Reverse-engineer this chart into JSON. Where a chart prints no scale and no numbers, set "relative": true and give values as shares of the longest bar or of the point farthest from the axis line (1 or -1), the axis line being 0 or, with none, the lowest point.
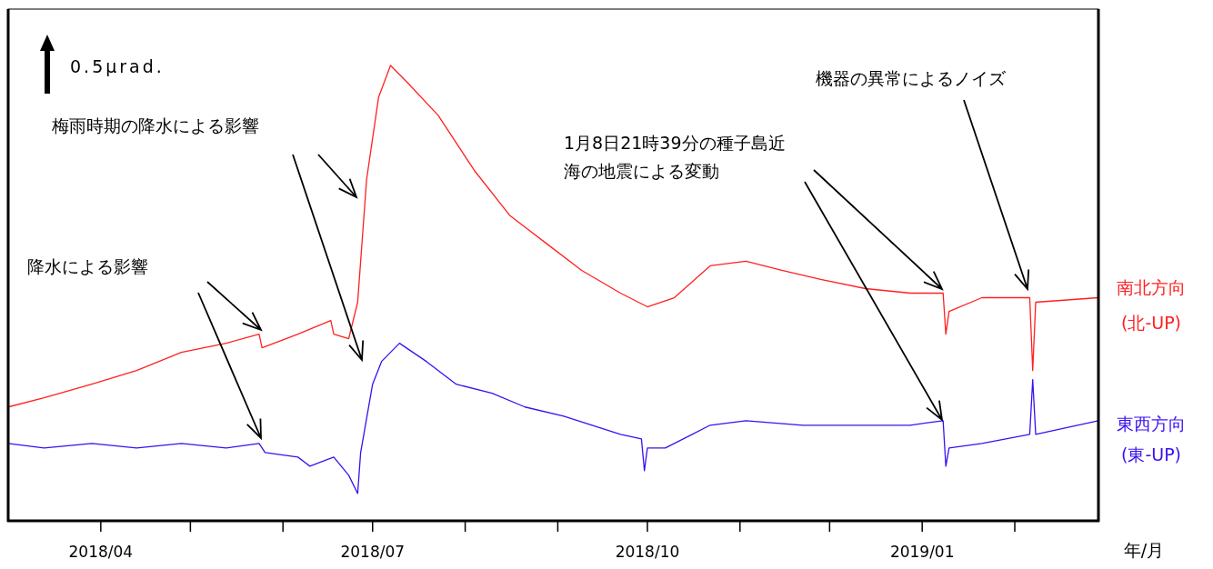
{
  "chart_data": {
    "type": "line",
    "relative": true,
    "xlabel": "年/月",
    "xlim": [
      "2018-03-01",
      "2019-03-01"
    ],
    "xticks": [
      {
        "value": "2018-04-01",
        "label": "2018/04"
      },
      {
        "value": "2018-05-01",
        "label": null
      },
      {
        "value": "2018-06-01",
        "label": null
      },
      {
        "value": "2018-07-01",
        "label": "2018/07"
      },
      {
        "value": "2018-08-01",
        "label": null
      },
      {
        "value": "2018-09-01",
        "label": null
      },
      {
        "value": "2018-10-01",
        "label": "2018/10"
      },
      {
        "value": "2018-11-01",
        "label": null
      },
      {
        "value": "2018-12-01",
        "label": null
      },
      {
        "value": "2019-01-01",
        "label": "2019/01"
      },
      {
        "value": "2019-02-01",
        "label": null
      }
    ],
    "line_style": "solid",
    "annotations": [
      "0.5μrad.",
      "梅雨時期の降水による影響",
      "降水による影響",
      "1月8日21時39分の種子島近海の地震による変動",
      "機器の異常によるノイズ"
    ],
    "series": [
      {
        "name": "南北方向 (北-UP)",
        "color": "#ff2020",
        "x": [
          "2018-03-01",
          "2018-03-13",
          "2018-03-29",
          "2018-04-13",
          "2018-04-28",
          "2018-05-13",
          "2018-05-24",
          "2018-05-25",
          "2018-06-06",
          "2018-06-17",
          "2018-06-18",
          "2018-06-23",
          "2018-06-26",
          "2018-06-29",
          "2018-07-03",
          "2018-07-07",
          "2018-07-13",
          "2018-07-23",
          "2018-08-04",
          "2018-08-16",
          "2018-08-28",
          "2018-09-09",
          "2018-09-22",
          "2018-10-01",
          "2018-10-10",
          "2018-10-22",
          "2018-11-03",
          "2018-11-15",
          "2018-11-28",
          "2018-12-13",
          "2018-12-28",
          "2019-01-08",
          "2019-01-08T22:00",
          "2019-01-10",
          "2019-01-21",
          "2019-02-06",
          "2019-02-07",
          "2019-02-08",
          "2019-03-01"
        ],
        "values": [
          0.25,
          0.27,
          0.3,
          0.33,
          0.37,
          0.39,
          0.41,
          0.38,
          0.41,
          0.44,
          0.41,
          0.4,
          0.48,
          0.75,
          0.93,
          1.0,
          0.96,
          0.89,
          0.77,
          0.67,
          0.61,
          0.55,
          0.5,
          0.47,
          0.49,
          0.56,
          0.57,
          0.55,
          0.53,
          0.51,
          0.5,
          0.5,
          0.41,
          0.46,
          0.49,
          0.49,
          0.33,
          0.48,
          0.49
        ]
      },
      {
        "name": "東西方向 (東-UP)",
        "color": "#3a10f0",
        "x": [
          "2018-03-01",
          "2018-03-13",
          "2018-03-29",
          "2018-04-13",
          "2018-04-28",
          "2018-05-13",
          "2018-05-24",
          "2018-05-26",
          "2018-06-06",
          "2018-06-10",
          "2018-06-18",
          "2018-06-23",
          "2018-06-26",
          "2018-06-27",
          "2018-07-01",
          "2018-07-04",
          "2018-07-10",
          "2018-07-19",
          "2018-07-29",
          "2018-08-10",
          "2018-08-21",
          "2018-09-03",
          "2018-09-22",
          "2018-09-29",
          "2018-09-30",
          "2018-10-01",
          "2018-10-07",
          "2018-10-22",
          "2018-11-03",
          "2018-11-22",
          "2018-12-13",
          "2018-12-28",
          "2019-01-08",
          "2019-01-08T22:00",
          "2019-01-10",
          "2019-01-21",
          "2019-02-06",
          "2019-02-07",
          "2019-02-08",
          "2019-03-01"
        ],
        "values": [
          0.17,
          0.16,
          0.17,
          0.16,
          0.17,
          0.16,
          0.17,
          0.15,
          0.14,
          0.12,
          0.14,
          0.1,
          0.06,
          0.15,
          0.3,
          0.35,
          0.39,
          0.35,
          0.3,
          0.28,
          0.25,
          0.23,
          0.19,
          0.18,
          0.11,
          0.16,
          0.16,
          0.21,
          0.22,
          0.21,
          0.21,
          0.21,
          0.22,
          0.12,
          0.16,
          0.17,
          0.19,
          0.31,
          0.19,
          0.22
        ]
      }
    ]
  }
}
